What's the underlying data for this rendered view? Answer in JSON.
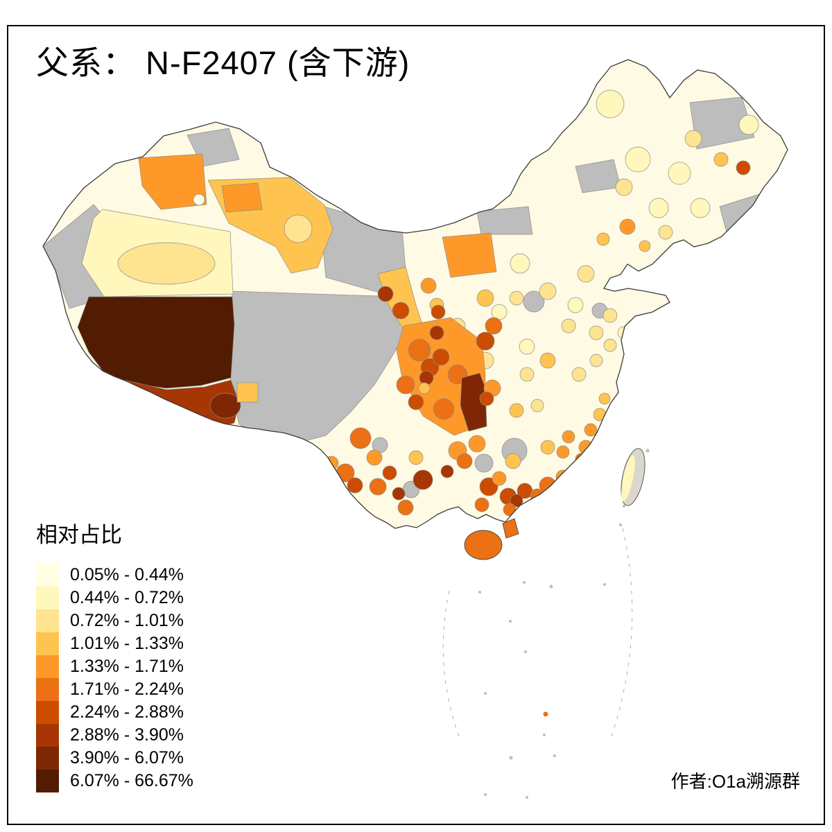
{
  "title": "父系： N-F2407 (含下游)",
  "legend": {
    "title": "相对占比",
    "classes": [
      {
        "label": "0.05% - 0.44%",
        "color": "#FFFFE5"
      },
      {
        "label": "0.44% - 0.72%",
        "color": "#FFF7BC"
      },
      {
        "label": "0.72% - 1.01%",
        "color": "#FEE391"
      },
      {
        "label": "1.01% - 1.33%",
        "color": "#FEC44F"
      },
      {
        "label": "1.33% - 1.71%",
        "color": "#FE9929"
      },
      {
        "label": "1.71% - 2.24%",
        "color": "#EC7014"
      },
      {
        "label": "2.24% - 2.88%",
        "color": "#CC4C02"
      },
      {
        "label": "2.88% - 3.90%",
        "color": "#A63603"
      },
      {
        "label": "3.90% - 6.07%",
        "color": "#7F2704"
      },
      {
        "label": "6.07% - 66.67%",
        "color": "#521C02"
      }
    ],
    "no_data_color": "#BDBDBD"
  },
  "author": "作者:O1a溯源群"
}
